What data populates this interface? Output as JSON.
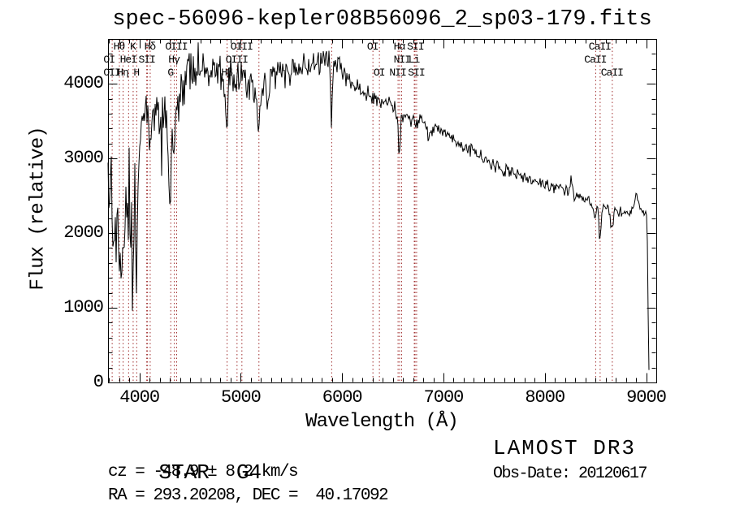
{
  "title": "spec-56096-kepler08B56096_2_sp03-179.fits",
  "footer": {
    "class_label": "STAR",
    "subclass": "G4",
    "cz_line": "cz = -48.9 ± 8.2 km/s",
    "radec_line": "RA = 293.20208, DEC =  40.17092",
    "survey": "LAMOST DR3",
    "obsdate_line": "Obs-Date: 20120617"
  },
  "chart_data": {
    "type": "line",
    "title": "spec-56096-kepler08B56096_2_sp03-179.fits",
    "xlabel": "Wavelength (Å)",
    "ylabel": "Flux (relative)",
    "xlim": [
      3690,
      9100
    ],
    "ylim": [
      0,
      4600
    ],
    "x_ticks": [
      4000,
      5000,
      6000,
      7000,
      8000,
      9000
    ],
    "y_ticks": [
      0,
      1000,
      2000,
      3000,
      4000
    ],
    "x_minor_step": 100,
    "y_minor_step": 200,
    "grid": false,
    "legend": "none",
    "line_color": "#000000",
    "marker_color": "#a02c2c",
    "noise_seed": 20120617,
    "marker_wavelengths": [
      3727,
      3798,
      3835,
      3889,
      3934,
      3969,
      4068,
      4076,
      4102,
      4305,
      4340,
      4363,
      4861,
      4959,
      5007,
      5175,
      5893,
      6300,
      6364,
      6548,
      6563,
      6583,
      6708,
      6716,
      6731,
      8498,
      8542,
      8662
    ],
    "line_labels": {
      "row1": [
        {
          "text": "Hθ",
          "wl": 3798
        },
        {
          "text": "K",
          "wl": 3934
        },
        {
          "text": "Hδ",
          "wl": 4102
        },
        {
          "text": "OIII",
          "wl": 4363
        },
        {
          "text": "OIII",
          "wl": 5007
        },
        {
          "text": "OI",
          "wl": 6300
        },
        {
          "text": "Hα",
          "wl": 6563
        },
        {
          "text": "SII",
          "wl": 6722
        },
        {
          "text": "CaII",
          "wl": 8542
        }
      ],
      "row2": [
        {
          "text": "OI",
          "wl": 3700
        },
        {
          "text": "HeI",
          "wl": 3889
        },
        {
          "text": "SII",
          "wl": 4072
        },
        {
          "text": "Hγ",
          "wl": 4340
        },
        {
          "text": "OIII",
          "wl": 4959
        },
        {
          "text": "NII",
          "wl": 6590
        },
        {
          "text": "Li",
          "wl": 6708
        },
        {
          "text": "CaII",
          "wl": 8498
        }
      ],
      "row3": [
        {
          "text": "OII",
          "wl": 3727
        },
        {
          "text": "Hη",
          "wl": 3835
        },
        {
          "text": "H",
          "wl": 3969
        },
        {
          "text": "G",
          "wl": 4305
        },
        {
          "text": "Hβ",
          "wl": 4861
        },
        {
          "text": "OI",
          "wl": 6364
        },
        {
          "text": "NII",
          "wl": 6548
        },
        {
          "text": "SII",
          "wl": 6731
        },
        {
          "text": "CaII",
          "wl": 8662
        }
      ]
    },
    "continuum_anchors": [
      [
        3690,
        2500
      ],
      [
        3694,
        420
      ],
      [
        3700,
        2950
      ],
      [
        3706,
        2200
      ],
      [
        3715,
        2500
      ],
      [
        3727,
        2600
      ],
      [
        3736,
        2050
      ],
      [
        3745,
        1800
      ],
      [
        3757,
        2500
      ],
      [
        3768,
        1900
      ],
      [
        3778,
        2300
      ],
      [
        3790,
        1700
      ],
      [
        3800,
        1900
      ],
      [
        3812,
        1100
      ],
      [
        3822,
        2000
      ],
      [
        3835,
        1550
      ],
      [
        3846,
        2450
      ],
      [
        3858,
        1950
      ],
      [
        3870,
        2550
      ],
      [
        3880,
        1600
      ],
      [
        3889,
        2150
      ],
      [
        3900,
        2750
      ],
      [
        3912,
        1500
      ],
      [
        3922,
        2650
      ],
      [
        3934,
        950
      ],
      [
        3946,
        2500
      ],
      [
        3958,
        2950
      ],
      [
        3969,
        750
      ],
      [
        3982,
        2800
      ],
      [
        3996,
        3300
      ],
      [
        4012,
        3500
      ],
      [
        4028,
        3250
      ],
      [
        4045,
        3500
      ],
      [
        4062,
        3550
      ],
      [
        4076,
        3350
      ],
      [
        4090,
        3520
      ],
      [
        4102,
        2950
      ],
      [
        4116,
        3420
      ],
      [
        4135,
        3560
      ],
      [
        4165,
        3500
      ],
      [
        4200,
        3660
      ],
      [
        4240,
        3600
      ],
      [
        4270,
        3520
      ],
      [
        4305,
        2420
      ],
      [
        4322,
        3300
      ],
      [
        4340,
        2870
      ],
      [
        4363,
        3520
      ],
      [
        4390,
        3800
      ],
      [
        4420,
        3980
      ],
      [
        4450,
        4120
      ],
      [
        4480,
        4060
      ],
      [
        4510,
        4160
      ],
      [
        4550,
        4230
      ],
      [
        4600,
        4180
      ],
      [
        4650,
        4240
      ],
      [
        4700,
        4200
      ],
      [
        4750,
        4240
      ],
      [
        4800,
        4180
      ],
      [
        4832,
        4080
      ],
      [
        4861,
        3360
      ],
      [
        4880,
        4060
      ],
      [
        4915,
        4150
      ],
      [
        4959,
        4020
      ],
      [
        5007,
        4090
      ],
      [
        5040,
        4160
      ],
      [
        5066,
        3820
      ],
      [
        5100,
        4090
      ],
      [
        5140,
        3800
      ],
      [
        5175,
        3420
      ],
      [
        5210,
        3980
      ],
      [
        5240,
        4100
      ],
      [
        5265,
        3720
      ],
      [
        5300,
        4140
      ],
      [
        5360,
        4200
      ],
      [
        5430,
        4170
      ],
      [
        5500,
        4220
      ],
      [
        5570,
        4180
      ],
      [
        5640,
        4250
      ],
      [
        5720,
        4240
      ],
      [
        5800,
        4300
      ],
      [
        5850,
        4360
      ],
      [
        5875,
        4300
      ],
      [
        5893,
        3420
      ],
      [
        5912,
        4240
      ],
      [
        5945,
        4300
      ],
      [
        5980,
        4240
      ],
      [
        6020,
        4150
      ],
      [
        6080,
        4060
      ],
      [
        6140,
        3960
      ],
      [
        6200,
        3900
      ],
      [
        6260,
        3850
      ],
      [
        6300,
        3790
      ],
      [
        6330,
        3840
      ],
      [
        6364,
        3750
      ],
      [
        6420,
        3780
      ],
      [
        6470,
        3710
      ],
      [
        6510,
        3660
      ],
      [
        6548,
        3590
      ],
      [
        6563,
        2880
      ],
      [
        6583,
        3560
      ],
      [
        6620,
        3600
      ],
      [
        6660,
        3570
      ],
      [
        6695,
        3520
      ],
      [
        6708,
        3480
      ],
      [
        6716,
        3450
      ],
      [
        6731,
        3480
      ],
      [
        6770,
        3510
      ],
      [
        6820,
        3470
      ],
      [
        6860,
        3320
      ],
      [
        6895,
        3430
      ],
      [
        6950,
        3400
      ],
      [
        7000,
        3330
      ],
      [
        7060,
        3290
      ],
      [
        7120,
        3240
      ],
      [
        7180,
        3170
      ],
      [
        7240,
        3120
      ],
      [
        7310,
        3060
      ],
      [
        7380,
        2990
      ],
      [
        7450,
        2940
      ],
      [
        7520,
        2890
      ],
      [
        7560,
        2860
      ],
      [
        7594,
        2760
      ],
      [
        7625,
        2850
      ],
      [
        7680,
        2820
      ],
      [
        7740,
        2780
      ],
      [
        7800,
        2740
      ],
      [
        7870,
        2700
      ],
      [
        7940,
        2680
      ],
      [
        8000,
        2660
      ],
      [
        8070,
        2630
      ],
      [
        8130,
        2610
      ],
      [
        8190,
        2580
      ],
      [
        8230,
        2560
      ],
      [
        8262,
        2760
      ],
      [
        8292,
        2440
      ],
      [
        8330,
        2520
      ],
      [
        8380,
        2470
      ],
      [
        8430,
        2420
      ],
      [
        8465,
        2400
      ],
      [
        8498,
        2150
      ],
      [
        8520,
        2390
      ],
      [
        8542,
        1890
      ],
      [
        8568,
        2360
      ],
      [
        8600,
        2340
      ],
      [
        8630,
        2320
      ],
      [
        8662,
        2000
      ],
      [
        8690,
        2310
      ],
      [
        8730,
        2290
      ],
      [
        8770,
        2270
      ],
      [
        8820,
        2250
      ],
      [
        8870,
        2350
      ],
      [
        8905,
        2500
      ],
      [
        8935,
        2380
      ],
      [
        8965,
        2290
      ],
      [
        8990,
        2310
      ],
      [
        9005,
        2260
      ],
      [
        9012,
        1850
      ],
      [
        9018,
        1150
      ],
      [
        9024,
        480
      ],
      [
        9029,
        60
      ]
    ],
    "noise_profile": [
      [
        3690,
        300
      ],
      [
        3950,
        290
      ],
      [
        4000,
        230
      ],
      [
        4200,
        185
      ],
      [
        4400,
        160
      ],
      [
        4700,
        130
      ],
      [
        5000,
        110
      ],
      [
        5400,
        95
      ],
      [
        5900,
        78
      ],
      [
        6300,
        60
      ],
      [
        6700,
        50
      ],
      [
        7200,
        42
      ],
      [
        7800,
        38
      ],
      [
        8400,
        34
      ],
      [
        8700,
        40
      ],
      [
        9030,
        28
      ]
    ],
    "blue_spikes": {
      "max_wavelength": 4430,
      "probability": 0.05,
      "min_depth": 250,
      "max_depth": 850
    }
  }
}
